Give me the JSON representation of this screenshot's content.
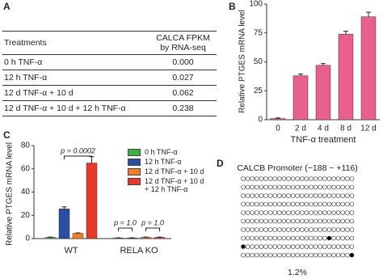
{
  "panel_a": {
    "label": "A",
    "table": {
      "header": [
        "Treatments",
        [
          "CALCA FPKM",
          "by RNA-seq"
        ]
      ],
      "rows": [
        [
          "0 h TNF-α",
          "0.000"
        ],
        [
          "12 h TNF-α",
          "0.027"
        ],
        [
          "12 d TNF-α + 10 d",
          "0.062"
        ],
        [
          "12 d TNF-α + 10 d + 12 h TNF-α",
          "0.238"
        ]
      ]
    }
  },
  "chart_data": [
    {
      "type": "bar",
      "panel_label": "B",
      "ylabel": "Relative PTGES mRNA level",
      "xlabel": "TNF-α treatment",
      "categories": [
        "0",
        "2 d",
        "4 d",
        "8 d",
        "12 d"
      ],
      "values": [
        1,
        38,
        47,
        74,
        89
      ],
      "errors": [
        0.5,
        1.5,
        1.5,
        2.5,
        4
      ],
      "color": "#e8608e",
      "ylim": [
        0,
        100
      ],
      "yticks": [
        0,
        25,
        50,
        75,
        100
      ]
    },
    {
      "type": "grouped_bar",
      "panel_label": "C",
      "ylabel": "Relative PTGES mRNA level",
      "categories": [
        "WT",
        "RELA KO"
      ],
      "series": [
        {
          "name": "0 h TNF-α",
          "color": "#3fae4a",
          "values": [
            1,
            0.5
          ],
          "errors": [
            0.3,
            0.2
          ]
        },
        {
          "name": "12 h TNF-α",
          "color": "#2b4ea3",
          "values": [
            25.5,
            0.5
          ],
          "errors": [
            1.8,
            0.2
          ]
        },
        {
          "name": "12 d TNF-α + 10 d",
          "color": "#f07f2a",
          "values": [
            4.5,
            1
          ],
          "errors": [
            0.4,
            0.3
          ]
        },
        {
          "name": "12 d TNF-α + 10 d + 12 h TNF-α",
          "color": "#e23b2e",
          "values": [
            65,
            1
          ],
          "errors": [
            5.5,
            0.3
          ]
        }
      ],
      "annotations": [
        "p = 0.0002",
        "p = 1.0",
        "p = 1.0"
      ],
      "ylim": [
        0,
        80
      ],
      "yticks": [
        0,
        20,
        40,
        60,
        80
      ]
    }
  ],
  "panel_d": {
    "label": "D",
    "title": "CALCB Promoter (−188 ~ +116)",
    "rows": 10,
    "sites": 25,
    "methylated": [
      [
        7,
        19
      ],
      [
        8,
        0
      ],
      [
        9,
        24
      ]
    ],
    "percent": "1.2%"
  }
}
